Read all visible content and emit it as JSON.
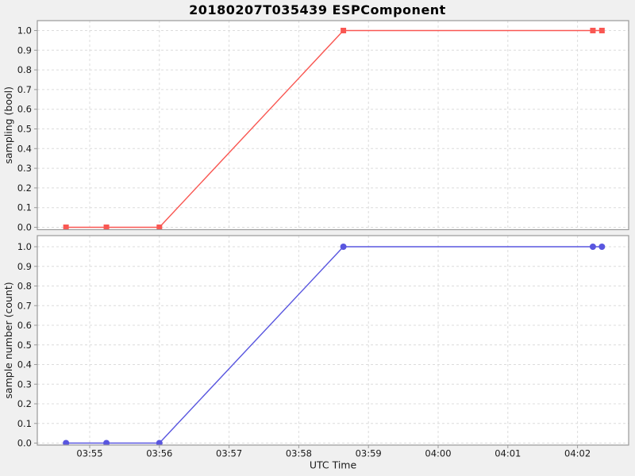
{
  "title": "20180207T035439 ESPComponent",
  "chart_data": {
    "type": "line",
    "title": "20180207T035439 ESPComponent",
    "xlabel": "UTC Time",
    "grid": true,
    "legend": "none",
    "x_tick_labels": [
      "03:55",
      "03:56",
      "03:57",
      "03:58",
      "03:59",
      "04:00",
      "04:01",
      "04:02"
    ],
    "x_tick_offsets_min": [
      0,
      1,
      2,
      3,
      4,
      5,
      6,
      7
    ],
    "y_tick_labels": [
      "0.0",
      "0.1",
      "0.2",
      "0.3",
      "0.4",
      "0.5",
      "0.6",
      "0.7",
      "0.8",
      "0.9",
      "1.0"
    ],
    "y_tick_values": [
      0,
      0.1,
      0.2,
      0.3,
      0.4,
      0.5,
      0.6,
      0.7,
      0.8,
      0.9,
      1.0
    ],
    "ylim": [
      0,
      1
    ],
    "x_times": [
      "03:54:40",
      "03:55:14",
      "03:56:00",
      "03:58:39",
      "04:02:13",
      "04:02:21"
    ],
    "x_offsets_min": [
      -0.34,
      0.24,
      1.0,
      3.64,
      7.22,
      7.35
    ],
    "subplots": [
      {
        "ylabel": "sampling (bool)",
        "series": [
          {
            "name": "sampling",
            "color": "#f95752",
            "marker": "square",
            "x_times": [
              "03:54:40",
              "03:55:14",
              "03:56:00",
              "03:58:39",
              "04:02:13",
              "04:02:21"
            ],
            "x_offsets_min": [
              -0.34,
              0.24,
              1.0,
              3.64,
              7.22,
              7.35
            ],
            "values": [
              0,
              0,
              0,
              1,
              1,
              1
            ]
          }
        ]
      },
      {
        "ylabel": "sample number (count)",
        "series": [
          {
            "name": "sample number",
            "color": "#5956df",
            "marker": "circle",
            "x_times": [
              "03:54:40",
              "03:55:14",
              "03:56:00",
              "03:58:39",
              "04:02:13",
              "04:02:21"
            ],
            "x_offsets_min": [
              -0.34,
              0.24,
              1.0,
              3.64,
              7.22,
              7.35
            ],
            "values": [
              0,
              0,
              0,
              1,
              1,
              1
            ]
          }
        ]
      }
    ],
    "colors": {
      "background": "#f0f0f0",
      "plot_background": "#ffffff",
      "grid": "#dcdcdc",
      "spine": "#999999",
      "tick_text": "#1a1a1a",
      "title_text": "#000000"
    }
  }
}
